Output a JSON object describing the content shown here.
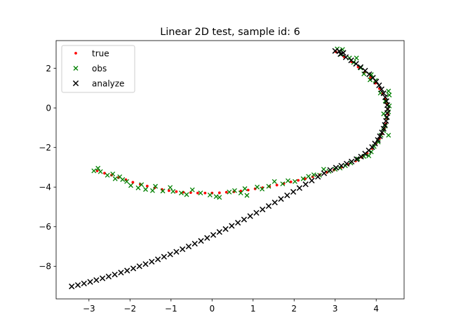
{
  "chart_data": {
    "type": "scatter",
    "title": "Linear 2D test, sample id: 6",
    "xlabel": "",
    "ylabel": "",
    "xlim": [
      -3.8,
      4.68
    ],
    "ylim": [
      -9.65,
      3.4
    ],
    "x_ticks": [
      -3,
      -2,
      -1,
      0,
      1,
      2,
      3,
      4
    ],
    "y_ticks": [
      -8,
      -6,
      -4,
      -2,
      0,
      2
    ],
    "x_tick_labels": [
      "−3",
      "−2",
      "−1",
      "0",
      "1",
      "2",
      "3",
      "4"
    ],
    "y_tick_labels": [
      "−8",
      "−6",
      "−4",
      "−2",
      "0",
      "2"
    ],
    "grid": false,
    "legend_position": "top-left",
    "series": [
      {
        "name": "true",
        "marker": "dot",
        "color": "#ff0000",
        "points": [
          [
            -2.8,
            -3.18
          ],
          [
            -2.62,
            -3.3
          ],
          [
            -2.45,
            -3.4
          ],
          [
            -2.28,
            -3.52
          ],
          [
            -2.1,
            -3.63
          ],
          [
            -1.93,
            -3.76
          ],
          [
            -1.75,
            -3.86
          ],
          [
            -1.58,
            -3.95
          ],
          [
            -1.4,
            -4.04
          ],
          [
            -1.22,
            -4.12
          ],
          [
            -1.05,
            -4.18
          ],
          [
            -0.87,
            -4.23
          ],
          [
            -0.7,
            -4.26
          ],
          [
            -0.52,
            -4.28
          ],
          [
            -0.35,
            -4.3
          ],
          [
            -0.17,
            -4.3
          ],
          [
            0.0,
            -4.3
          ],
          [
            0.18,
            -4.29
          ],
          [
            0.35,
            -4.26
          ],
          [
            0.53,
            -4.24
          ],
          [
            0.7,
            -4.2
          ],
          [
            0.88,
            -4.15
          ],
          [
            1.05,
            -4.09
          ],
          [
            1.23,
            -4.03
          ],
          [
            1.4,
            -3.97
          ],
          [
            1.58,
            -3.9
          ],
          [
            1.75,
            -3.82
          ],
          [
            1.92,
            -3.74
          ],
          [
            2.1,
            -3.66
          ],
          [
            2.27,
            -3.58
          ],
          [
            2.45,
            -3.48
          ],
          [
            2.62,
            -3.38
          ],
          [
            2.8,
            -3.26
          ],
          [
            2.97,
            -3.14
          ],
          [
            3.15,
            -3.0
          ],
          [
            3.32,
            -2.86
          ],
          [
            3.5,
            -2.68
          ],
          [
            3.65,
            -2.5
          ],
          [
            3.78,
            -2.3
          ],
          [
            3.9,
            -2.05
          ],
          [
            4.0,
            -1.8
          ],
          [
            4.08,
            -1.55
          ],
          [
            4.15,
            -1.3
          ],
          [
            4.2,
            -1.05
          ],
          [
            4.24,
            -0.8
          ],
          [
            4.27,
            -0.55
          ],
          [
            4.28,
            -0.3
          ],
          [
            4.28,
            -0.05
          ],
          [
            4.26,
            0.2
          ],
          [
            4.22,
            0.45
          ],
          [
            4.16,
            0.72
          ],
          [
            4.08,
            0.98
          ],
          [
            3.98,
            1.25
          ],
          [
            3.86,
            1.52
          ],
          [
            3.72,
            1.8
          ],
          [
            3.56,
            2.07
          ],
          [
            3.4,
            2.33
          ],
          [
            3.22,
            2.58
          ],
          [
            3.02,
            2.83
          ]
        ]
      },
      {
        "name": "obs",
        "marker": "x",
        "color": "#008000",
        "points": [
          [
            -2.88,
            -3.18
          ],
          [
            -2.78,
            -3.05
          ],
          [
            -2.72,
            -3.22
          ],
          [
            -2.55,
            -3.4
          ],
          [
            -2.42,
            -3.34
          ],
          [
            -2.36,
            -3.58
          ],
          [
            -2.25,
            -3.48
          ],
          [
            -2.18,
            -3.62
          ],
          [
            -2.08,
            -3.72
          ],
          [
            -1.98,
            -3.92
          ],
          [
            -1.8,
            -4.04
          ],
          [
            -1.72,
            -3.88
          ],
          [
            -1.62,
            -4.12
          ],
          [
            -1.45,
            -4.18
          ],
          [
            -1.38,
            -3.96
          ],
          [
            -1.2,
            -4.2
          ],
          [
            -1.02,
            -4.02
          ],
          [
            -0.95,
            -4.22
          ],
          [
            -0.75,
            -4.3
          ],
          [
            -0.62,
            -4.38
          ],
          [
            -0.48,
            -4.14
          ],
          [
            -0.28,
            -4.3
          ],
          [
            -0.05,
            -4.4
          ],
          [
            0.1,
            -4.48
          ],
          [
            0.18,
            -4.52
          ],
          [
            0.42,
            -4.25
          ],
          [
            0.55,
            -4.18
          ],
          [
            0.7,
            -4.3
          ],
          [
            0.8,
            -4.08
          ],
          [
            0.85,
            -4.42
          ],
          [
            1.1,
            -4.0
          ],
          [
            1.22,
            -4.1
          ],
          [
            1.38,
            -3.96
          ],
          [
            1.52,
            -3.72
          ],
          [
            1.72,
            -3.84
          ],
          [
            1.85,
            -3.68
          ],
          [
            2.02,
            -3.72
          ],
          [
            2.22,
            -3.58
          ],
          [
            2.35,
            -3.46
          ],
          [
            2.48,
            -3.38
          ],
          [
            2.62,
            -3.4
          ],
          [
            2.72,
            -3.1
          ],
          [
            2.85,
            -3.2
          ],
          [
            3.0,
            -3.1
          ],
          [
            3.12,
            -3.04
          ],
          [
            3.25,
            -2.92
          ],
          [
            3.38,
            -2.78
          ],
          [
            3.55,
            -2.58
          ],
          [
            3.7,
            -2.45
          ],
          [
            3.82,
            -2.42
          ],
          [
            3.88,
            -2.22
          ],
          [
            3.95,
            -1.95
          ],
          [
            4.05,
            -1.72
          ],
          [
            4.12,
            -1.38
          ],
          [
            4.18,
            -1.15
          ],
          [
            4.22,
            -0.92
          ],
          [
            4.3,
            -1.38
          ],
          [
            4.25,
            -0.5
          ],
          [
            4.3,
            -0.2
          ],
          [
            4.18,
            -0.3
          ],
          [
            4.32,
            0.1
          ],
          [
            4.22,
            0.35
          ],
          [
            4.32,
            0.65
          ],
          [
            4.1,
            0.75
          ],
          [
            4.3,
            0.85
          ],
          [
            3.98,
            1.38
          ],
          [
            3.85,
            1.42
          ],
          [
            3.88,
            1.68
          ],
          [
            3.7,
            1.72
          ],
          [
            3.62,
            2.02
          ],
          [
            3.45,
            2.3
          ],
          [
            3.52,
            2.52
          ],
          [
            3.35,
            2.52
          ],
          [
            3.15,
            2.72
          ],
          [
            3.18,
            2.95
          ],
          [
            3.05,
            2.98
          ]
        ]
      },
      {
        "name": "analyze",
        "marker": "x",
        "color": "#000000",
        "points": [
          [
            -3.42,
            -9.02
          ],
          [
            -3.27,
            -8.95
          ],
          [
            -3.12,
            -8.87
          ],
          [
            -2.97,
            -8.79
          ],
          [
            -2.82,
            -8.7
          ],
          [
            -2.67,
            -8.61
          ],
          [
            -2.52,
            -8.52
          ],
          [
            -2.37,
            -8.42
          ],
          [
            -2.22,
            -8.32
          ],
          [
            -2.07,
            -8.22
          ],
          [
            -1.92,
            -8.11
          ],
          [
            -1.77,
            -8.0
          ],
          [
            -1.62,
            -7.89
          ],
          [
            -1.47,
            -7.77
          ],
          [
            -1.32,
            -7.65
          ],
          [
            -1.17,
            -7.52
          ],
          [
            -1.02,
            -7.4
          ],
          [
            -0.87,
            -7.27
          ],
          [
            -0.72,
            -7.14
          ],
          [
            -0.57,
            -7.0
          ],
          [
            -0.42,
            -6.86
          ],
          [
            -0.27,
            -6.72
          ],
          [
            -0.12,
            -6.57
          ],
          [
            0.03,
            -6.42
          ],
          [
            0.18,
            -6.27
          ],
          [
            0.33,
            -6.12
          ],
          [
            0.48,
            -5.96
          ],
          [
            0.63,
            -5.8
          ],
          [
            0.78,
            -5.64
          ],
          [
            0.93,
            -5.47
          ],
          [
            1.08,
            -5.3
          ],
          [
            1.23,
            -5.13
          ],
          [
            1.38,
            -4.96
          ],
          [
            1.53,
            -4.78
          ],
          [
            1.68,
            -4.6
          ],
          [
            1.83,
            -4.42
          ],
          [
            1.98,
            -4.24
          ],
          [
            2.13,
            -4.05
          ],
          [
            2.28,
            -3.86
          ],
          [
            2.43,
            -3.67
          ],
          [
            2.58,
            -3.48
          ],
          [
            2.73,
            -3.3
          ],
          [
            2.88,
            -3.14
          ],
          [
            3.02,
            -3.02
          ],
          [
            3.15,
            -2.92
          ],
          [
            3.28,
            -2.82
          ],
          [
            3.4,
            -2.71
          ],
          [
            3.52,
            -2.59
          ],
          [
            3.63,
            -2.46
          ],
          [
            3.73,
            -2.31
          ],
          [
            3.82,
            -2.15
          ],
          [
            3.9,
            -1.98
          ],
          [
            3.97,
            -1.8
          ],
          [
            4.04,
            -1.62
          ],
          [
            4.09,
            -1.43
          ],
          [
            4.14,
            -1.24
          ],
          [
            4.18,
            -1.05
          ],
          [
            4.21,
            -0.86
          ],
          [
            4.24,
            -0.66
          ],
          [
            4.26,
            -0.46
          ],
          [
            4.27,
            -0.26
          ],
          [
            4.28,
            -0.06
          ],
          [
            4.27,
            0.14
          ],
          [
            4.25,
            0.34
          ],
          [
            4.22,
            0.54
          ],
          [
            4.18,
            0.74
          ],
          [
            4.13,
            0.94
          ],
          [
            4.07,
            1.14
          ],
          [
            4.0,
            1.33
          ],
          [
            3.92,
            1.52
          ],
          [
            3.83,
            1.7
          ],
          [
            3.73,
            1.88
          ],
          [
            3.62,
            2.06
          ],
          [
            3.51,
            2.23
          ],
          [
            3.39,
            2.4
          ],
          [
            3.26,
            2.56
          ],
          [
            3.13,
            2.72
          ],
          [
            3.0,
            2.88
          ],
          [
            3.1,
            2.86
          ],
          [
            3.2,
            2.78
          ]
        ]
      }
    ]
  }
}
